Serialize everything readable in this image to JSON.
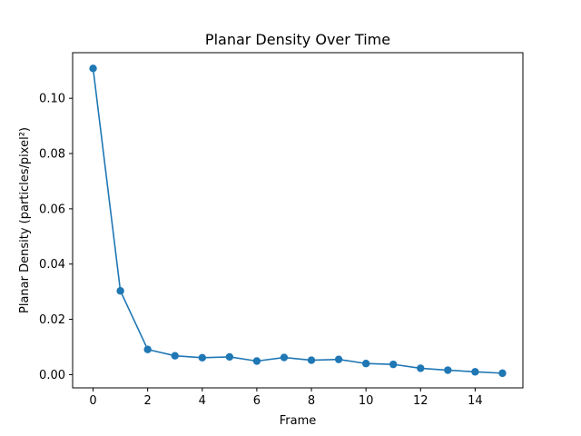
{
  "chart_data": {
    "type": "line",
    "title": "Planar Density Over Time",
    "xlabel": "Frame",
    "ylabel": "Planar Density (particles/pixel²)",
    "xlim": [
      -0.75,
      15.75
    ],
    "ylim": [
      -0.0048,
      0.1165
    ],
    "x_ticks": [
      0,
      2,
      4,
      6,
      8,
      10,
      12,
      14
    ],
    "x_tick_labels": [
      "0",
      "2",
      "4",
      "6",
      "8",
      "10",
      "12",
      "14"
    ],
    "y_ticks": [
      0.0,
      0.02,
      0.04,
      0.06,
      0.08,
      0.1
    ],
    "y_tick_labels": [
      "0.00",
      "0.02",
      "0.04",
      "0.06",
      "0.08",
      "0.10"
    ],
    "grid": false,
    "legend": "none",
    "series": [
      {
        "color": "#1f77b4",
        "marker": "circle",
        "x": [
          0,
          1,
          2,
          3,
          4,
          5,
          6,
          7,
          8,
          9,
          10,
          11,
          12,
          13,
          14,
          15
        ],
        "values": [
          0.1108,
          0.0303,
          0.0091,
          0.0068,
          0.0061,
          0.0064,
          0.0049,
          0.0062,
          0.0052,
          0.0055,
          0.004,
          0.0037,
          0.0023,
          0.0016,
          0.001,
          0.0005
        ]
      }
    ]
  }
}
